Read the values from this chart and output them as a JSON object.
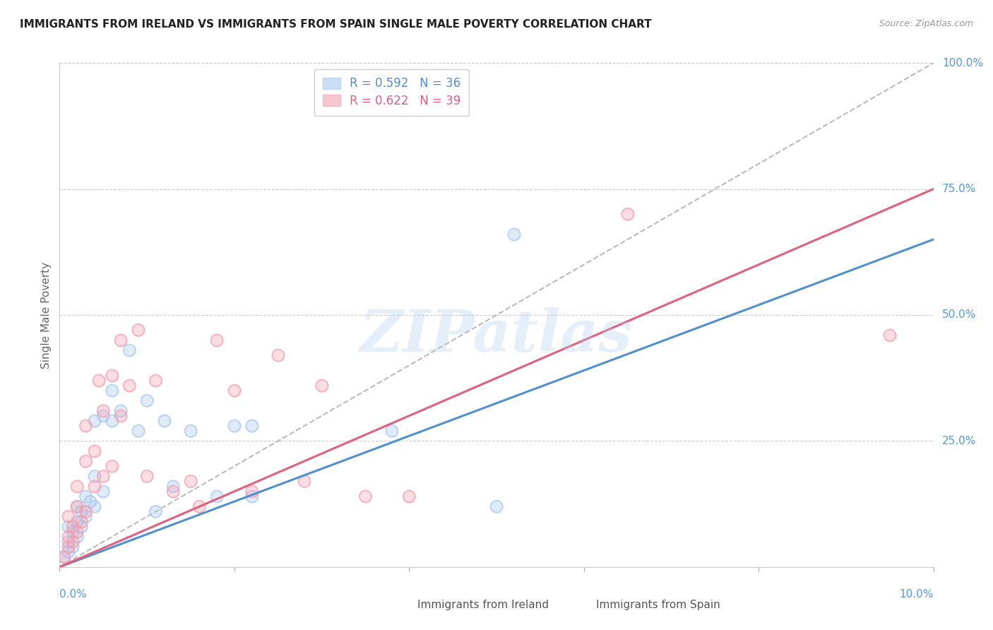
{
  "title": "IMMIGRANTS FROM IRELAND VS IMMIGRANTS FROM SPAIN SINGLE MALE POVERTY CORRELATION CHART",
  "source": "Source: ZipAtlas.com",
  "ylabel": "Single Male Poverty",
  "right_yticks": [
    0.0,
    0.25,
    0.5,
    0.75,
    1.0
  ],
  "right_yticklabels": [
    "",
    "25.0%",
    "50.0%",
    "75.0%",
    "100.0%"
  ],
  "ireland_R": 0.592,
  "ireland_N": 36,
  "spain_R": 0.622,
  "spain_N": 39,
  "ireland_scatter_color": "#a8c8f0",
  "spain_scatter_color": "#f4a0b0",
  "ireland_line_color": "#5090d0",
  "spain_line_color": "#e06080",
  "ref_line_color": "#bbbbbb",
  "legend_label_ireland": "Immigrants from Ireland",
  "legend_label_spain": "Immigrants from Spain",
  "watermark": "ZIPatlas",
  "ireland_line": [
    0.0,
    0.0,
    0.1,
    0.65
  ],
  "spain_line": [
    0.0,
    0.0,
    0.1,
    0.75
  ],
  "ref_line": [
    0.0,
    0.0,
    0.1,
    1.0
  ],
  "ireland_scatter": [
    [
      0.0005,
      0.02
    ],
    [
      0.001,
      0.03
    ],
    [
      0.001,
      0.05
    ],
    [
      0.001,
      0.08
    ],
    [
      0.0015,
      0.04
    ],
    [
      0.0015,
      0.07
    ],
    [
      0.002,
      0.06
    ],
    [
      0.002,
      0.09
    ],
    [
      0.002,
      0.12
    ],
    [
      0.0025,
      0.08
    ],
    [
      0.0025,
      0.11
    ],
    [
      0.003,
      0.1
    ],
    [
      0.003,
      0.14
    ],
    [
      0.0035,
      0.13
    ],
    [
      0.004,
      0.12
    ],
    [
      0.004,
      0.18
    ],
    [
      0.004,
      0.29
    ],
    [
      0.005,
      0.15
    ],
    [
      0.005,
      0.3
    ],
    [
      0.006,
      0.29
    ],
    [
      0.006,
      0.35
    ],
    [
      0.007,
      0.31
    ],
    [
      0.008,
      0.43
    ],
    [
      0.009,
      0.27
    ],
    [
      0.01,
      0.33
    ],
    [
      0.011,
      0.11
    ],
    [
      0.012,
      0.29
    ],
    [
      0.013,
      0.16
    ],
    [
      0.015,
      0.27
    ],
    [
      0.018,
      0.14
    ],
    [
      0.02,
      0.28
    ],
    [
      0.022,
      0.14
    ],
    [
      0.022,
      0.28
    ],
    [
      0.038,
      0.27
    ],
    [
      0.05,
      0.12
    ],
    [
      0.052,
      0.66
    ]
  ],
  "spain_scatter": [
    [
      0.0005,
      0.02
    ],
    [
      0.001,
      0.04
    ],
    [
      0.001,
      0.06
    ],
    [
      0.001,
      0.1
    ],
    [
      0.0015,
      0.05
    ],
    [
      0.0015,
      0.08
    ],
    [
      0.002,
      0.07
    ],
    [
      0.002,
      0.12
    ],
    [
      0.002,
      0.16
    ],
    [
      0.0025,
      0.09
    ],
    [
      0.003,
      0.11
    ],
    [
      0.003,
      0.21
    ],
    [
      0.003,
      0.28
    ],
    [
      0.004,
      0.16
    ],
    [
      0.004,
      0.23
    ],
    [
      0.0045,
      0.37
    ],
    [
      0.005,
      0.18
    ],
    [
      0.005,
      0.31
    ],
    [
      0.006,
      0.2
    ],
    [
      0.006,
      0.38
    ],
    [
      0.007,
      0.3
    ],
    [
      0.007,
      0.45
    ],
    [
      0.008,
      0.36
    ],
    [
      0.009,
      0.47
    ],
    [
      0.01,
      0.18
    ],
    [
      0.011,
      0.37
    ],
    [
      0.013,
      0.15
    ],
    [
      0.015,
      0.17
    ],
    [
      0.016,
      0.12
    ],
    [
      0.018,
      0.45
    ],
    [
      0.02,
      0.35
    ],
    [
      0.022,
      0.15
    ],
    [
      0.025,
      0.42
    ],
    [
      0.028,
      0.17
    ],
    [
      0.03,
      0.36
    ],
    [
      0.035,
      0.14
    ],
    [
      0.04,
      0.14
    ],
    [
      0.065,
      0.7
    ],
    [
      0.095,
      0.46
    ]
  ],
  "xlim": [
    0.0,
    0.1
  ],
  "ylim": [
    0.0,
    1.0
  ]
}
